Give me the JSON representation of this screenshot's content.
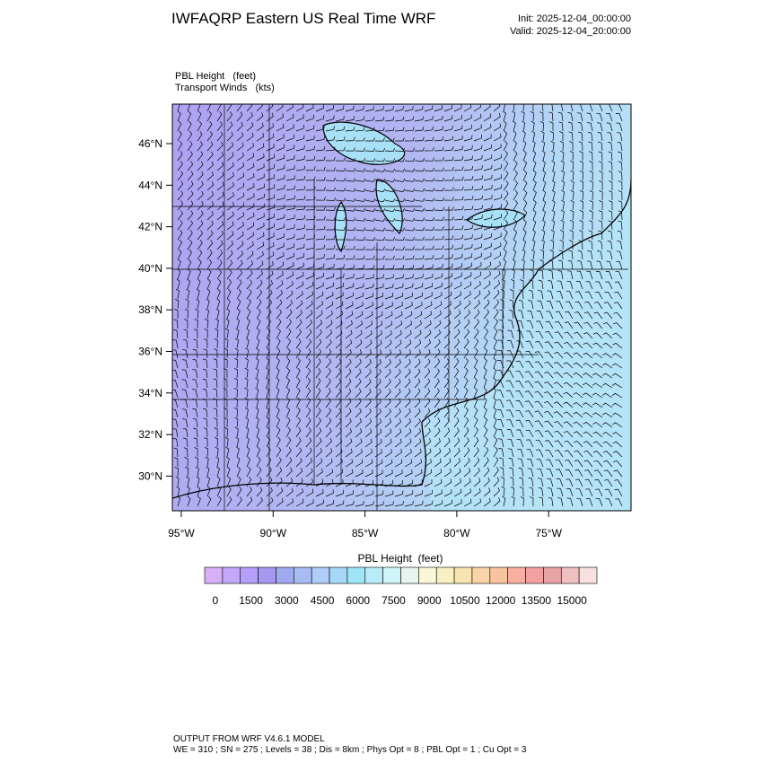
{
  "header": {
    "title": "IWFAQRP Eastern US Real Time WRF",
    "init": "Init: 2025-12-04_00:00:00",
    "valid": "Valid: 2025-12-04_20:00:00"
  },
  "field_labels": [
    "PBL Height   (feet)",
    "Transport Winds   (kts)"
  ],
  "map": {
    "lat_labels": [
      "46°N",
      "44°N",
      "42°N",
      "40°N",
      "38°N",
      "36°N",
      "34°N",
      "32°N",
      "30°N"
    ],
    "lon_labels": [
      "95°W",
      "90°W",
      "85°W",
      "80°W",
      "75°W"
    ]
  },
  "colorbar": {
    "title": "PBL Height  (feet)",
    "colors": [
      "#d8b0f8",
      "#c4a8f8",
      "#b4a0f8",
      "#a498f0",
      "#a0a8f0",
      "#a8bcf4",
      "#b0ccf8",
      "#a8d8f8",
      "#a0e4f8",
      "#b8ecf8",
      "#d0f4f8",
      "#e8f4f0",
      "#f8f8d8",
      "#f8f0c0",
      "#f8e4b0",
      "#f8d4a8",
      "#f8c4a0",
      "#f8b0a0",
      "#f4a0a0",
      "#e8a4a4",
      "#f0c0c0",
      "#f8e0e0"
    ],
    "labels": [
      0,
      1500,
      3000,
      4500,
      6000,
      7500,
      9000,
      10500,
      12000,
      13500,
      15000
    ]
  },
  "footer": [
    "OUTPUT FROM WRF V4.6.1 MODEL",
    "WE = 310 ; SN = 275 ; Levels = 38 ; Dis = 8km ; Phys Opt = 8 ; PBL Opt = 1 ; Cu Opt = 3"
  ]
}
